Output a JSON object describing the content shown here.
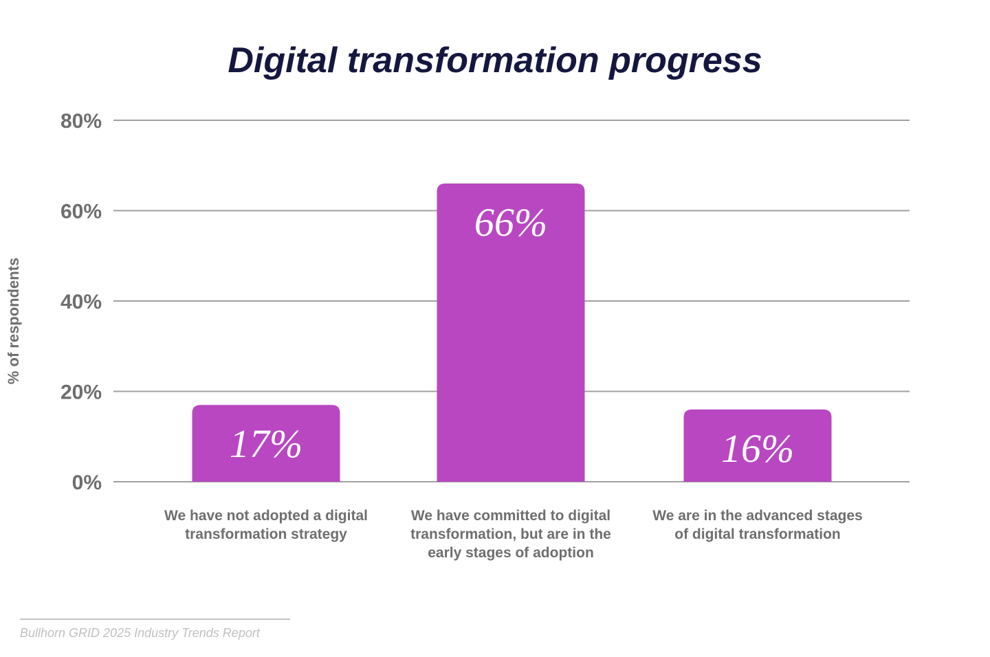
{
  "chart_data": {
    "type": "bar",
    "title": "Digital transformation progress",
    "ylabel": "% of respondents",
    "xlabel": "",
    "categories": [
      "We have not adopted a digital transformation strategy",
      "We have committed to digital transformation, but are in the early stages of adoption",
      "We are in the advanced stages of digital transformation"
    ],
    "values": [
      17,
      66,
      16
    ],
    "data_labels": [
      "17%",
      "66%",
      "16%"
    ],
    "ylim": [
      0,
      80
    ],
    "yticks": [
      0,
      20,
      40,
      60,
      80
    ],
    "ytick_labels": [
      "0%",
      "20%",
      "40%",
      "60%",
      "80%"
    ],
    "grid": true,
    "legend": "none",
    "colors": {
      "bar": "#b847c1",
      "title": "#15173f",
      "grid": "#a0a0a0",
      "axis_text": "#6e6e6e"
    }
  },
  "source": "Bullhorn GRID 2025 Industry Trends Report"
}
